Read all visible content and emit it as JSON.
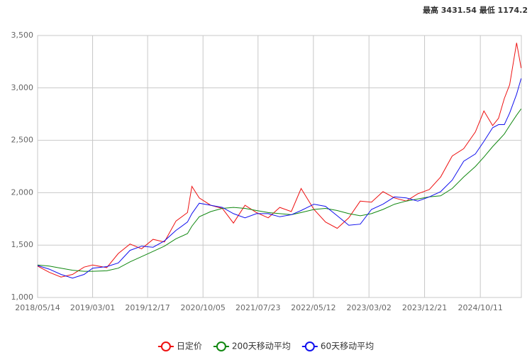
{
  "chart_data": {
    "type": "line",
    "annotation": "最高 3431.54 最低 1174.2",
    "x": [
      "2018/05/14",
      "2018/07/15",
      "2018/09/15",
      "2018/11/15",
      "2019/01/15",
      "2019/03/01",
      "2019/05/15",
      "2019/07/15",
      "2019/09/15",
      "2019/11/15",
      "2020/01/15",
      "2020/03/15",
      "2020/05/15",
      "2020/07/15",
      "2020/08/07",
      "2020/09/15",
      "2020/11/15",
      "2021/01/15",
      "2021/03/15",
      "2021/05/15",
      "2021/07/15",
      "2021/09/15",
      "2021/11/15",
      "2022/01/15",
      "2022/03/08",
      "2022/05/15",
      "2022/07/15",
      "2022/09/15",
      "2022/11/15",
      "2023/01/15",
      "2023/03/15",
      "2023/05/15",
      "2023/07/15",
      "2023/09/15",
      "2023/11/15",
      "2024/01/15",
      "2024/03/15",
      "2024/05/15",
      "2024/07/15",
      "2024/09/15",
      "2024/10/30",
      "2024/12/15",
      "2025/01/15",
      "2025/02/15",
      "2025/03/15",
      "2025/04/21",
      "2025/05/15"
    ],
    "series": [
      {
        "name": "日定价",
        "color": "#ee1111",
        "values": [
          1300,
          1240,
          1195,
          1220,
          1290,
          1310,
          1285,
          1420,
          1510,
          1465,
          1555,
          1530,
          1730,
          1810,
          2060,
          1950,
          1880,
          1850,
          1710,
          1880,
          1810,
          1760,
          1860,
          1820,
          2040,
          1840,
          1720,
          1660,
          1760,
          1920,
          1910,
          2010,
          1950,
          1920,
          1990,
          2030,
          2150,
          2350,
          2420,
          2580,
          2780,
          2640,
          2710,
          2900,
          3030,
          3430,
          3190
        ]
      },
      {
        "name": "200天移动平均",
        "color": "#118811",
        "values": [
          1310,
          1300,
          1280,
          1260,
          1250,
          1250,
          1255,
          1280,
          1340,
          1390,
          1440,
          1490,
          1560,
          1610,
          1680,
          1770,
          1820,
          1850,
          1860,
          1850,
          1830,
          1810,
          1800,
          1790,
          1810,
          1840,
          1850,
          1830,
          1800,
          1780,
          1800,
          1840,
          1890,
          1920,
          1940,
          1960,
          1970,
          2040,
          2150,
          2250,
          2340,
          2440,
          2500,
          2560,
          2640,
          2740,
          2800
        ]
      },
      {
        "name": "60天移动平均",
        "color": "#1111ee",
        "values": [
          1305,
          1270,
          1220,
          1185,
          1220,
          1280,
          1295,
          1330,
          1450,
          1490,
          1480,
          1540,
          1640,
          1720,
          1800,
          1900,
          1880,
          1860,
          1800,
          1760,
          1800,
          1800,
          1770,
          1790,
          1830,
          1890,
          1870,
          1780,
          1690,
          1700,
          1840,
          1890,
          1960,
          1950,
          1920,
          1960,
          2010,
          2120,
          2300,
          2370,
          2490,
          2620,
          2650,
          2650,
          2760,
          2940,
          3090
        ]
      }
    ],
    "xlim": [
      "2018/05/14",
      "2025/05/16"
    ],
    "xticks": [
      "2018/05/14",
      "2019/03/01",
      "2019/12/17",
      "2020/10/05",
      "2021/07/23",
      "2022/05/12",
      "2023/03/02",
      "2023/12/21",
      "2024/10/11"
    ],
    "ylim": [
      1000,
      3500
    ],
    "yticks": [
      {
        "value": 1000,
        "label": "1,000"
      },
      {
        "value": 1500,
        "label": "1,500"
      },
      {
        "value": 2000,
        "label": "2,000"
      },
      {
        "value": 2500,
        "label": "2,500"
      },
      {
        "value": 3000,
        "label": "3,000"
      },
      {
        "value": 3500,
        "label": "3,500"
      }
    ],
    "grid": true,
    "legend": "bottom"
  }
}
